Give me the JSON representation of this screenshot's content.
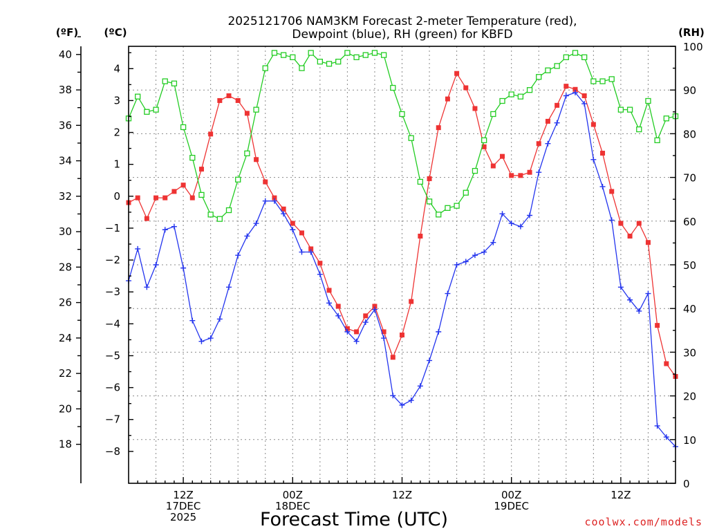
{
  "chart_data": {
    "type": "line",
    "title": [
      "2025121706 NAM3KM Forecast 2-meter Temperature (red),",
      "Dewpoint (blue), RH (green) for KBFD"
    ],
    "xlabel": "Forecast Time (UTC)",
    "credit": "coolwx.com/models",
    "units": {
      "f": "(ºF)",
      "c": "(ºC)",
      "rh": "(RH)"
    },
    "x": {
      "start_hour": 6,
      "end_hour": 66,
      "step_hours": 1
    },
    "x_ticks": [
      {
        "hour": 12,
        "lines": [
          "12Z",
          "17DEC",
          "2025"
        ]
      },
      {
        "hour": 24,
        "lines": [
          "00Z",
          "18DEC"
        ]
      },
      {
        "hour": 36,
        "lines": [
          "12Z"
        ]
      },
      {
        "hour": 48,
        "lines": [
          "00Z",
          "19DEC"
        ]
      },
      {
        "hour": 60,
        "lines": [
          "12Z"
        ]
      }
    ],
    "y_c": {
      "min": -9,
      "max": 4.7,
      "ticks": [
        -8,
        -7,
        -6,
        -5,
        -4,
        -3,
        -2,
        -1,
        0,
        1,
        2,
        3,
        4
      ],
      "labels": [
        "−8",
        "−7",
        "−6",
        "−5",
        "−4",
        "−3",
        "−2",
        "−1",
        "0",
        "1",
        "2",
        "3",
        "4"
      ]
    },
    "y_f": {
      "ticks": [
        18,
        20,
        22,
        24,
        26,
        28,
        30,
        32,
        34,
        36,
        38,
        40
      ]
    },
    "y_rh": {
      "min": 0,
      "max": 100,
      "ticks": [
        0,
        10,
        20,
        30,
        40,
        50,
        60,
        70,
        80,
        90,
        100
      ]
    },
    "grid": true,
    "series": [
      {
        "name": "Temperature",
        "axis": "c",
        "color": "#ee3333",
        "marker": "filled-square",
        "values": [
          -0.2,
          -0.05,
          -0.7,
          -0.05,
          -0.05,
          0.15,
          0.35,
          -0.05,
          0.85,
          1.95,
          3.0,
          3.15,
          3.0,
          2.6,
          1.15,
          0.45,
          -0.05,
          -0.4,
          -0.85,
          -1.15,
          -1.65,
          -2.1,
          -2.95,
          -3.45,
          -4.15,
          -4.25,
          -3.75,
          -3.45,
          -4.25,
          -5.05,
          -4.35,
          -3.3,
          -1.25,
          0.55,
          2.15,
          3.05,
          3.85,
          3.4,
          2.75,
          1.55,
          0.95,
          1.25,
          0.65,
          0.65,
          0.75,
          1.65,
          2.35,
          2.85,
          3.45,
          3.35,
          3.15,
          2.25,
          1.35,
          0.15,
          -0.85,
          -1.25,
          -0.85,
          -1.45,
          -4.05,
          -5.25,
          -5.65
        ]
      },
      {
        "name": "Dewpoint",
        "axis": "c",
        "color": "#2233ee",
        "marker": "plus",
        "values": [
          -2.65,
          -1.65,
          -2.85,
          -2.15,
          -1.05,
          -0.95,
          -2.25,
          -3.9,
          -4.55,
          -4.45,
          -3.85,
          -2.85,
          -1.85,
          -1.25,
          -0.85,
          -0.15,
          -0.15,
          -0.55,
          -1.05,
          -1.75,
          -1.75,
          -2.45,
          -3.35,
          -3.75,
          -4.25,
          -4.55,
          -3.95,
          -3.55,
          -4.45,
          -6.25,
          -6.55,
          -6.4,
          -5.95,
          -5.15,
          -4.25,
          -3.05,
          -2.15,
          -2.05,
          -1.85,
          -1.75,
          -1.45,
          -0.55,
          -0.85,
          -0.95,
          -0.6,
          0.75,
          1.65,
          2.3,
          3.15,
          3.25,
          2.9,
          1.15,
          0.3,
          -0.75,
          -2.85,
          -3.25,
          -3.6,
          -3.05,
          -7.2,
          -7.55,
          -7.85
        ]
      },
      {
        "name": "RH",
        "axis": "rh",
        "color": "#22cc22",
        "marker": "open-square",
        "values": [
          83.5,
          88.5,
          85,
          85.5,
          92,
          91.5,
          81.5,
          74.5,
          66,
          61.5,
          60.5,
          62.5,
          69.5,
          75.5,
          85.5,
          95,
          98.5,
          98,
          97.5,
          95,
          98.5,
          96.5,
          96,
          96.5,
          98.5,
          97.5,
          98,
          98.5,
          98,
          90.5,
          84.5,
          79,
          69,
          64.5,
          61.5,
          63,
          63.5,
          66.5,
          71.5,
          78.5,
          84.5,
          87.5,
          89,
          88.5,
          90,
          93,
          94.5,
          95.5,
          97.5,
          98.5,
          97.5,
          92,
          92,
          92.5,
          85.5,
          85.5,
          81,
          87.5,
          78.5,
          83.5,
          84
        ]
      }
    ]
  }
}
